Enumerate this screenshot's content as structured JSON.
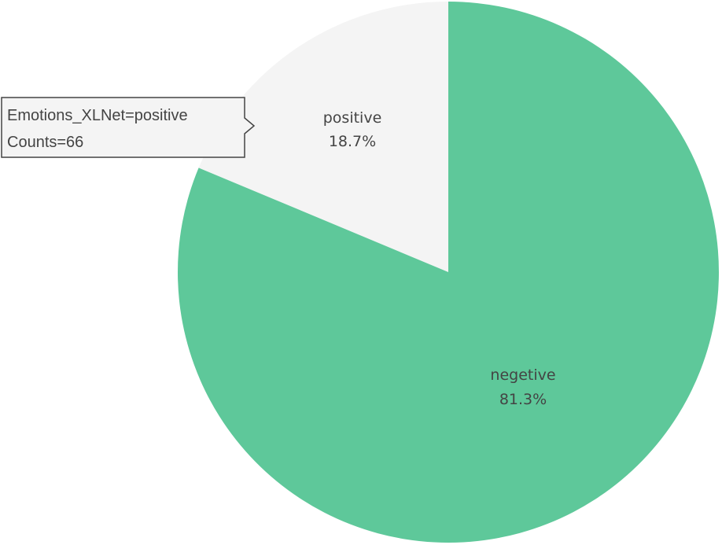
{
  "chart_data": {
    "type": "pie",
    "slices": [
      {
        "label": "positive",
        "percent_label": "18.7%",
        "value": 18.7,
        "color": "#f4f4f4"
      },
      {
        "label": "negetive",
        "percent_label": "81.3%",
        "value": 81.3,
        "color": "#5ec89a"
      }
    ],
    "start_angle_deg": 0,
    "direction": "counterclockwise",
    "tooltip": {
      "slice": "positive",
      "line1": "Emotions_XLNet=positive",
      "line2": "Counts=66"
    }
  }
}
